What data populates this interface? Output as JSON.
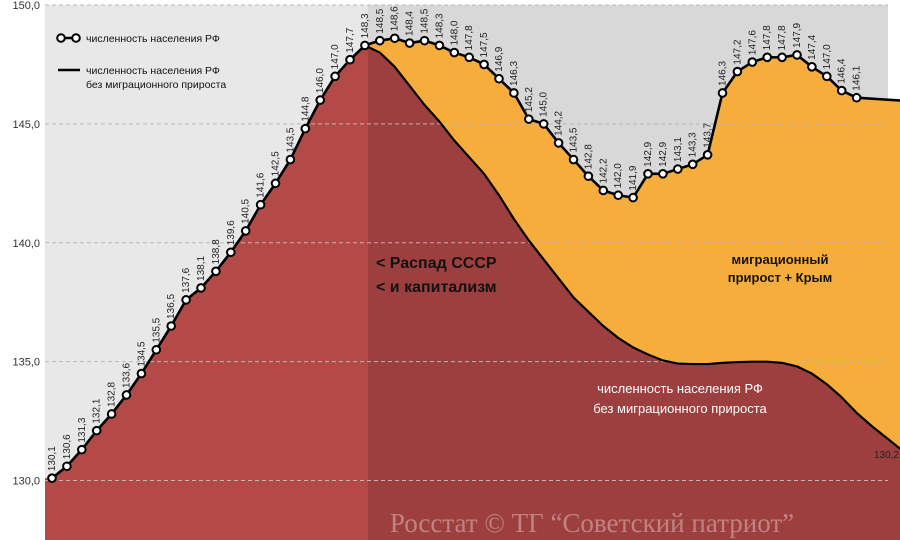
{
  "chart_data": {
    "type": "area",
    "title": "",
    "xlabel": "",
    "ylabel": "",
    "ylim": [
      127.5,
      150.0
    ],
    "yticks": [
      "130,0",
      "135,0",
      "140,0",
      "145,0",
      "150,0"
    ],
    "grid": true,
    "legend_position": "top-left",
    "legend": [
      {
        "label": "численность населения РФ",
        "style": "line-with-markers"
      },
      {
        "label": "численность населения РФ без миграционного прироста",
        "lines": [
          "численность населения РФ",
          "без миграционного прироста"
        ],
        "style": "line"
      }
    ],
    "series": [
      {
        "name": "численность населения РФ",
        "values": [
          130.1,
          130.6,
          131.3,
          132.1,
          132.8,
          133.6,
          134.5,
          135.5,
          136.5,
          137.6,
          138.1,
          138.8,
          139.6,
          140.5,
          141.6,
          142.5,
          143.5,
          144.8,
          146.0,
          147.0,
          147.7,
          148.3,
          148.5,
          148.6,
          148.4,
          148.5,
          148.3,
          148.0,
          147.8,
          147.5,
          146.9,
          146.3,
          145.2,
          145.0,
          144.2,
          143.5,
          142.8,
          142.2,
          142.0,
          141.9,
          142.9,
          142.9,
          143.1,
          143.3,
          143.7,
          146.3,
          147.2,
          147.6,
          147.8,
          147.8,
          147.9,
          147.4,
          147.0,
          146.4,
          146.1
        ],
        "labels": [
          "130,1",
          "130,6",
          "131,3",
          "132,1",
          "132,8",
          "133,6",
          "134,5",
          "135,5",
          "136,5",
          "137,6",
          "138,1",
          "138,8",
          "139,6",
          "140,5",
          "141,6",
          "142,5",
          "143,5",
          "144,8",
          "146,0",
          "147,0",
          "147,7",
          "148,3",
          "148,5",
          "148,6",
          "148,4",
          "148,5",
          "148,3",
          "148,0",
          "147,8",
          "147,5",
          "146,9",
          "146,3",
          "145,2",
          "145,0",
          "144,2",
          "143,5",
          "142,8",
          "142,2",
          "142,0",
          "141,9",
          "142,9",
          "142,9",
          "143,1",
          "143,3",
          "143,7",
          "146,3",
          "147,2",
          "147,6",
          "147,8",
          "147,8",
          "147,9",
          "147,4",
          "147,0",
          "146,4",
          "146,1"
        ]
      },
      {
        "name": "численность населения РФ без миграционного прироста",
        "values": [
          130.1,
          130.6,
          131.3,
          132.1,
          132.8,
          133.6,
          134.5,
          135.5,
          136.5,
          137.6,
          138.1,
          138.8,
          139.6,
          140.5,
          141.6,
          142.5,
          143.5,
          144.8,
          146.0,
          147.0,
          147.7,
          148.3,
          148.0,
          147.4,
          146.6,
          145.8,
          145.1,
          144.3,
          143.6,
          142.9,
          142.0,
          141.0,
          140.1,
          139.3,
          138.5,
          137.7,
          137.1,
          136.5,
          136.0,
          135.6,
          135.3,
          135.05,
          134.92,
          134.9,
          134.9,
          134.95,
          134.98,
          135.0,
          135.0,
          134.95,
          134.8,
          134.5,
          134.05,
          133.5,
          132.85,
          132.3,
          131.8,
          131.3,
          130.8,
          130.2
        ],
        "end_label": "130,2"
      }
    ],
    "segments": [
      {
        "label": "< Распад СССР\n< и капитализм",
        "lines": [
          "< Распад СССР",
          "< и капитализм"
        ]
      },
      {
        "label": "миграционный прирост + Крым",
        "lines": [
          "миграционный",
          "прирост + Крым"
        ]
      },
      {
        "label": "численность населения РФ без миграционного прироста",
        "lines": [
          "численность населения РФ",
          "без миграционного прироста"
        ]
      }
    ],
    "watermark": "Росстат © ТГ “Советский патриот”",
    "colors": {
      "background": "#ffffff",
      "plot_bg_left": "#e8e8e8",
      "plot_bg_right": "#d8d8d8",
      "red_area_left": "#b34a48",
      "red_area_right": "#9e3f3f",
      "orange_area": "#f7ad3b",
      "line": "#000000",
      "gridline": "#b9b9b9"
    }
  }
}
